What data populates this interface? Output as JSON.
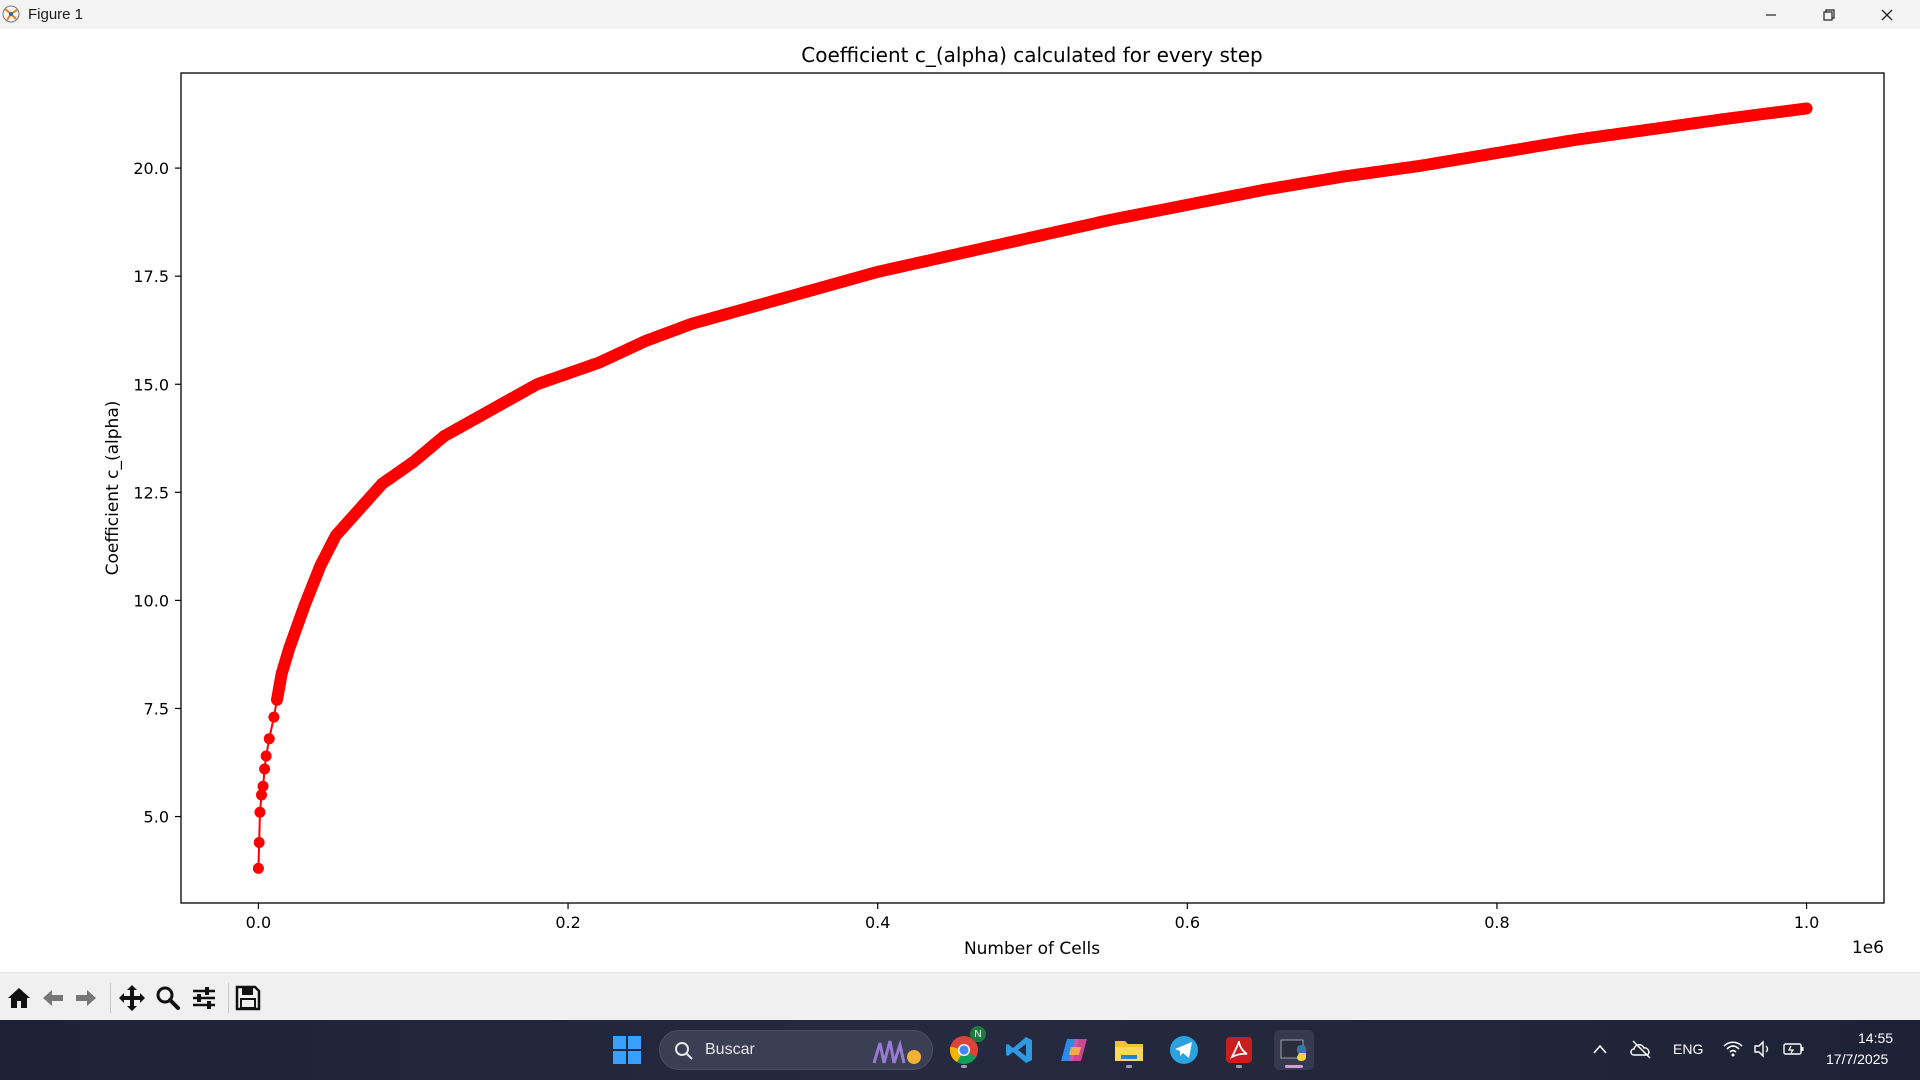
{
  "window": {
    "title": "Figure 1",
    "controls": [
      "minimize-icon",
      "restore-icon",
      "close-icon"
    ]
  },
  "figure": {
    "title": "Coefficient c_(alpha) calculated for every step",
    "xlabel": "Number of Cells",
    "ylabel": "Coefficient c_(alpha)",
    "x_offset_text": "1e6"
  },
  "chart_data": {
    "type": "line",
    "title": "Coefficient c_(alpha) calculated for every step",
    "xlabel": "Number of Cells",
    "ylabel": "Coefficient c_(alpha)",
    "x_scale_text": "1e6",
    "xlim": [
      -0.05,
      1.05
    ],
    "ylim": [
      3.0,
      22.2
    ],
    "x_ticks": [
      0.0,
      0.2,
      0.4,
      0.6,
      0.8,
      1.0
    ],
    "x_tick_labels": [
      "0.0",
      "0.2",
      "0.4",
      "0.6",
      "0.8",
      "1.0"
    ],
    "y_ticks": [
      5.0,
      7.5,
      10.0,
      12.5,
      15.0,
      17.5,
      20.0
    ],
    "y_tick_labels": [
      "5.0",
      "7.5",
      "10.0",
      "12.5",
      "15.0",
      "17.5",
      "20.0"
    ],
    "grid": false,
    "legend": "none",
    "marker": "circle",
    "color": "#ff0000",
    "series": [
      {
        "x": [
          0.0,
          0.0005,
          0.001,
          0.002,
          0.003,
          0.004,
          0.005,
          0.007,
          0.01,
          0.015,
          0.02,
          0.03,
          0.04,
          0.05,
          0.06,
          0.07,
          0.08,
          0.1,
          0.12,
          0.14,
          0.16,
          0.18,
          0.2,
          0.22,
          0.25,
          0.28,
          0.3,
          0.33,
          0.36,
          0.4,
          0.45,
          0.5,
          0.55,
          0.6,
          0.65,
          0.7,
          0.75,
          0.8,
          0.85,
          0.9,
          0.95,
          1.0
        ],
        "y": [
          3.8,
          4.4,
          5.1,
          5.5,
          5.7,
          6.1,
          6.4,
          6.8,
          7.3,
          8.3,
          8.9,
          9.9,
          10.8,
          11.5,
          11.9,
          12.3,
          12.7,
          13.2,
          13.8,
          14.2,
          14.6,
          15.0,
          15.25,
          15.5,
          16.0,
          16.4,
          16.6,
          16.9,
          17.2,
          17.6,
          18.0,
          18.4,
          18.8,
          19.15,
          19.5,
          19.8,
          20.05,
          20.35,
          20.65,
          20.9,
          21.15,
          21.38
        ]
      }
    ]
  },
  "toolbar": {
    "buttons": [
      "home-icon",
      "back-icon",
      "forward-icon",
      "pan-icon",
      "zoom-icon",
      "configure-subplots-icon",
      "save-icon"
    ]
  },
  "taskbar": {
    "search_label": "Buscar",
    "apps": [
      "start-icon",
      "chrome-icon",
      "vscode-icon",
      "copilot-icon",
      "file-explorer-icon",
      "telegram-icon",
      "acrobat-icon",
      "python-figure-icon"
    ],
    "chrome_badge": "N",
    "language": "ENG",
    "time": "14:55",
    "date": "17/7/2025"
  },
  "colors": {
    "series": "#ff0000",
    "taskbar": "#1f2335",
    "toolbar": "#f0f0f0"
  }
}
